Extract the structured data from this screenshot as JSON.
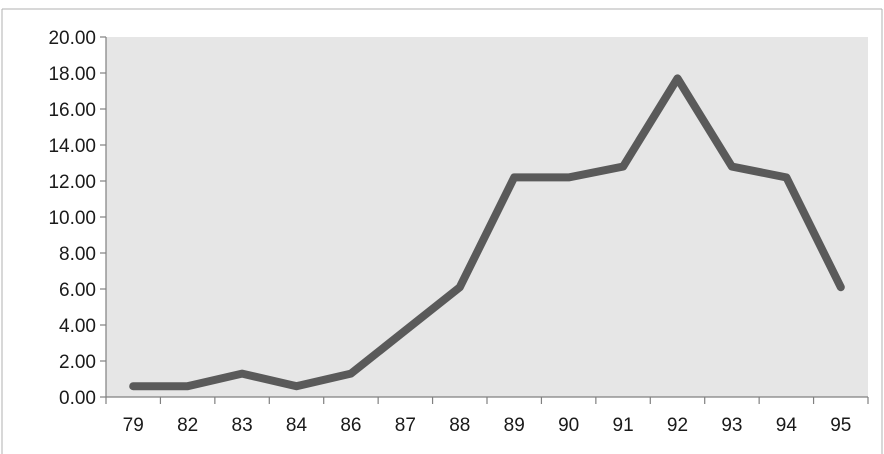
{
  "chart_data": {
    "type": "line",
    "title": "",
    "xlabel": "",
    "ylabel": "",
    "categories": [
      "79",
      "82",
      "83",
      "84",
      "86",
      "87",
      "88",
      "89",
      "90",
      "91",
      "92",
      "93",
      "94",
      "95"
    ],
    "series": [
      {
        "values": [
          0.6,
          0.6,
          1.3,
          0.6,
          1.3,
          3.7,
          6.1,
          12.2,
          12.2,
          12.8,
          17.7,
          12.8,
          12.2,
          6.1
        ],
        "color": "#5a5a5a"
      }
    ],
    "ylim": [
      0,
      20
    ],
    "y_ticks": [
      "0.00",
      "2.00",
      "4.00",
      "6.00",
      "8.00",
      "10.00",
      "12.00",
      "14.00",
      "16.00",
      "18.00",
      "20.00"
    ],
    "grid": false,
    "legend": "none",
    "plot_background": "#e6e6e6"
  }
}
